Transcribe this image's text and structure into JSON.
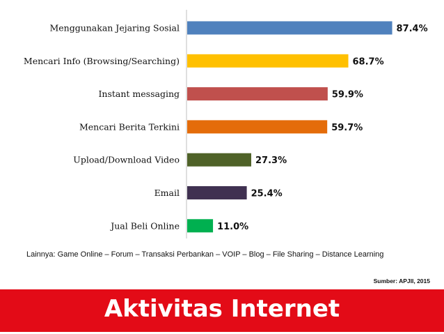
{
  "chart_data": {
    "type": "bar",
    "orientation": "horizontal",
    "categories": [
      "Menggunakan Jejaring Sosial",
      "Mencari Info (Browsing/Searching)",
      "Instant messaging",
      "Mencari Berita Terkini",
      "Upload/Download Video",
      "Email",
      "Jual Beli Online"
    ],
    "values": [
      87.4,
      68.7,
      59.9,
      59.7,
      27.3,
      25.4,
      11.0
    ],
    "value_labels": [
      "87.4%",
      "68.7%",
      "59.9%",
      "59.7%",
      "27.3%",
      "25.4%",
      "11.0%"
    ],
    "colors": [
      "#4f81bd",
      "#ffc000",
      "#c0504d",
      "#e46c0a",
      "#4f6228",
      "#403151",
      "#00b050"
    ],
    "xlim": [
      0,
      100
    ],
    "grid": false,
    "legend": "none",
    "title": "",
    "xlabel": "",
    "ylabel": ""
  },
  "footnote": "Lainnya: Game Online – Forum – Transaksi Perbankan – VOIP – Blog – File Sharing – Distance Learning",
  "source": "Sumber: APJII, 2015",
  "banner": {
    "title": "Aktivitas Internet",
    "color": "#e30b17"
  }
}
